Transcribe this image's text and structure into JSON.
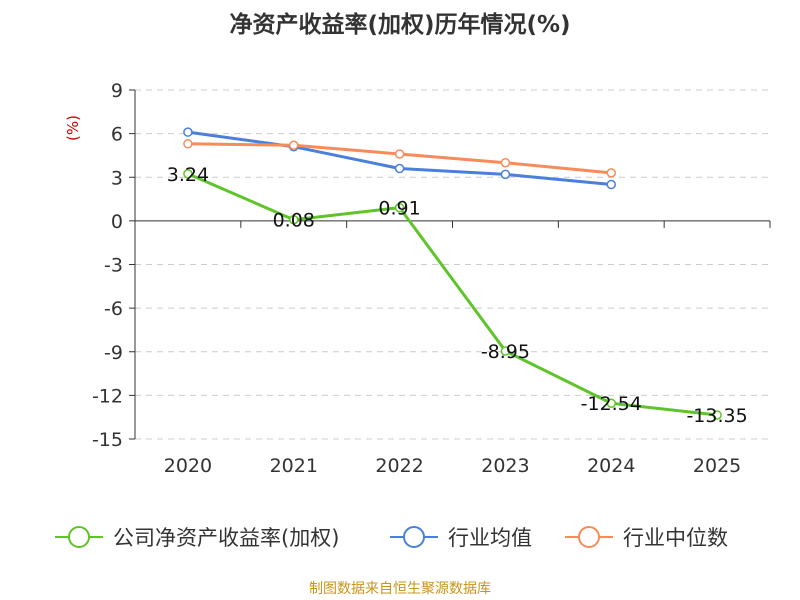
{
  "chart_data": {
    "type": "line",
    "title": "净资产收益率(加权)历年情况(%)",
    "ylabel": "(%)",
    "xlabel": "",
    "categories": [
      "2020",
      "2021",
      "2022",
      "2023",
      "2024",
      "2025"
    ],
    "yticks": [
      "9",
      "6",
      "3",
      "0",
      "-3",
      "-6",
      "-9",
      "-12",
      "-15"
    ],
    "ylim": [
      -15,
      9
    ],
    "grid": true,
    "legend_position": "bottom",
    "series": [
      {
        "name": "公司净资产收益率(加权)",
        "color": "#5fc42a",
        "values": [
          3.24,
          0.08,
          0.91,
          -8.95,
          -12.54,
          -13.35
        ],
        "labels": [
          "3.24",
          "0.08",
          "0.91",
          "-8.95",
          "-12.54",
          "-13.35"
        ]
      },
      {
        "name": "行业均值",
        "color": "#4a7fdb",
        "values": [
          6.1,
          5.1,
          3.6,
          3.2,
          2.5,
          null
        ]
      },
      {
        "name": "行业中位数",
        "color": "#f88b5a",
        "values": [
          5.3,
          5.2,
          4.6,
          4.0,
          3.3,
          null
        ]
      }
    ],
    "source": "制图数据来自恒生聚源数据库"
  }
}
